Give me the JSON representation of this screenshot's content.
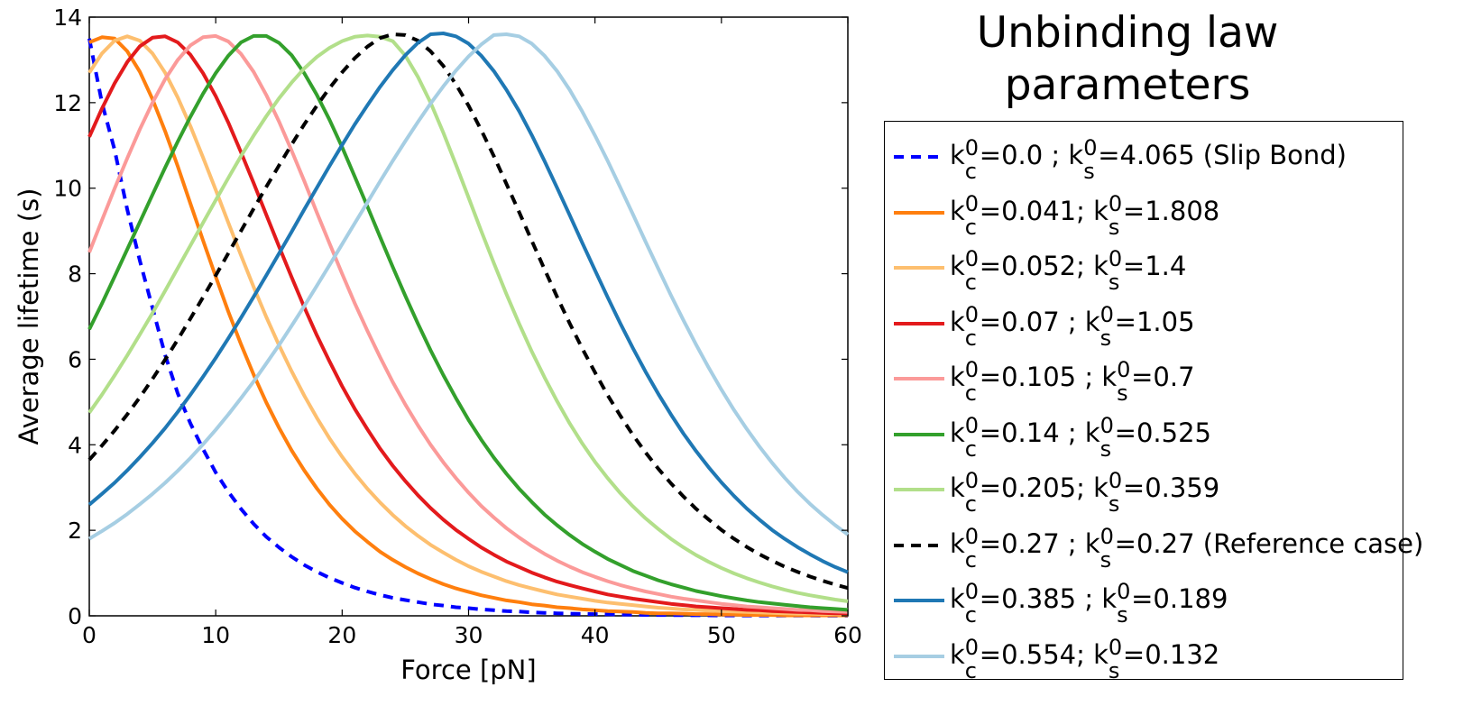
{
  "chart_data": {
    "type": "line",
    "xlabel": "Force [pN]",
    "ylabel": "Average lifetime (s)",
    "xlim": [
      0,
      60
    ],
    "ylim": [
      0,
      14
    ],
    "x_ticks": [
      "0",
      "10",
      "20",
      "30",
      "40",
      "50",
      "60"
    ],
    "y_ticks": [
      "0",
      "2",
      "4",
      "6",
      "8",
      "10",
      "12",
      "14"
    ],
    "grid": false,
    "legend": {
      "title": "Unbinding law parameters",
      "placement": "right"
    },
    "x": [
      0,
      1,
      2,
      3,
      4,
      5,
      6,
      7,
      8,
      9,
      10,
      11,
      12,
      13,
      14,
      15,
      16,
      17,
      18,
      19,
      20,
      21,
      22,
      23,
      24,
      25,
      26,
      27,
      28,
      29,
      30,
      31,
      32,
      33,
      34,
      35,
      36,
      37,
      38,
      39,
      40,
      41,
      42,
      43,
      44,
      45,
      46,
      47,
      48,
      49,
      50,
      51,
      52,
      53,
      54,
      55,
      56,
      57,
      58,
      59,
      60
    ],
    "series": [
      {
        "name": "k_c^0=0.0 ; k_s^0=4.065 (Slip Bond)",
        "label_parts": [
          "k",
          "c",
          "0",
          "=0.0    ; k",
          "s",
          "0",
          "=4.065 (Slip Bond)"
        ],
        "color": "#0000ff",
        "style": "dashed",
        "values": [
          13.5,
          12.0,
          10.9,
          9.5,
          8.3,
          7.2,
          6.1,
          5.2,
          4.5,
          3.9,
          3.35,
          2.9,
          2.5,
          2.15,
          1.85,
          1.6,
          1.38,
          1.19,
          1.03,
          0.89,
          0.77,
          0.66,
          0.57,
          0.49,
          0.42,
          0.37,
          0.32,
          0.27,
          0.24,
          0.2,
          0.18,
          0.15,
          0.13,
          0.11,
          0.1,
          0.08,
          0.07,
          0.06,
          0.05,
          0.045,
          0.04,
          0.035,
          0.03,
          0.026,
          0.022,
          0.019,
          0.017,
          0.014,
          0.012,
          0.011,
          0.009,
          0.008,
          0.007,
          0.006,
          0.005,
          0.0045,
          0.004,
          0.0035,
          0.003,
          0.0025,
          0.002
        ]
      },
      {
        "name": "k_c^0=0.041; k_s^0=1.808",
        "label_parts": [
          "k",
          "c",
          "0",
          "=0.041; k",
          "s",
          "0",
          "=1.808"
        ],
        "color": "#ff7f0e",
        "style": "solid",
        "values": [
          13.41,
          13.53,
          13.5,
          13.2,
          12.72,
          12.08,
          11.33,
          10.51,
          9.64,
          8.78,
          7.93,
          7.11,
          6.35,
          5.64,
          4.99,
          4.4,
          3.87,
          3.4,
          2.98,
          2.6,
          2.27,
          1.98,
          1.73,
          1.5,
          1.31,
          1.14,
          0.99,
          0.86,
          0.74,
          0.64,
          0.56,
          0.48,
          0.42,
          0.36,
          0.32,
          0.27,
          0.24,
          0.2,
          0.18,
          0.15,
          0.13,
          0.11,
          0.1,
          0.09,
          0.07,
          0.06,
          0.06,
          0.05,
          0.04,
          0.04,
          0.03,
          0.03,
          0.02,
          0.02,
          0.02,
          0.01,
          0.01,
          0.01,
          0.01,
          0.01,
          0.01
        ]
      },
      {
        "name": "k_c^0=0.052; k_s^0=1.4",
        "label_parts": [
          "k",
          "c",
          "0",
          "=0.052; k",
          "s",
          "0",
          "=1.4"
        ],
        "color": "#fdbf6f",
        "style": "solid",
        "values": [
          12.7,
          13.15,
          13.45,
          13.55,
          13.45,
          13.15,
          12.7,
          12.12,
          11.45,
          10.72,
          9.96,
          9.19,
          8.43,
          7.69,
          6.99,
          6.33,
          5.72,
          5.15,
          4.63,
          4.15,
          3.72,
          3.33,
          2.97,
          2.65,
          2.36,
          2.1,
          1.87,
          1.66,
          1.48,
          1.31,
          1.16,
          1.03,
          0.92,
          0.81,
          0.72,
          0.64,
          0.57,
          0.5,
          0.45,
          0.4,
          0.35,
          0.31,
          0.28,
          0.25,
          0.22,
          0.19,
          0.17,
          0.15,
          0.14,
          0.12,
          0.11,
          0.1,
          0.09,
          0.08,
          0.07,
          0.06,
          0.05,
          0.05,
          0.04,
          0.04,
          0.03
        ]
      },
      {
        "name": "k_c^0=0.07 ; k_s^0=1.05",
        "label_parts": [
          "k",
          "c",
          "0",
          "=0.07 ; k",
          "s",
          "0",
          "=1.05"
        ],
        "color": "#e31a1c",
        "style": "solid",
        "values": [
          11.2,
          11.86,
          12.45,
          12.95,
          13.32,
          13.52,
          13.55,
          13.41,
          13.12,
          12.69,
          12.15,
          11.53,
          10.84,
          10.12,
          9.38,
          8.64,
          7.92,
          7.22,
          6.56,
          5.95,
          5.37,
          4.84,
          4.36,
          3.91,
          3.51,
          3.15,
          2.82,
          2.52,
          2.25,
          2.01,
          1.8,
          1.6,
          1.43,
          1.27,
          1.14,
          1.01,
          0.9,
          0.8,
          0.72,
          0.64,
          0.57,
          0.5,
          0.45,
          0.4,
          0.36,
          0.32,
          0.28,
          0.25,
          0.22,
          0.2,
          0.18,
          0.16,
          0.14,
          0.13,
          0.11,
          0.1,
          0.09,
          0.08,
          0.07,
          0.06,
          0.06
        ]
      },
      {
        "name": "k_c^0=0.105 ; k_s^0=0.7",
        "label_parts": [
          "k",
          "c",
          "0",
          "=0.105 ; k",
          "s",
          "0",
          "=0.7"
        ],
        "color": "#fb9a99",
        "style": "solid",
        "values": [
          8.5,
          9.25,
          9.99,
          10.7,
          11.38,
          12.0,
          12.55,
          13.0,
          13.34,
          13.53,
          13.56,
          13.43,
          13.14,
          12.72,
          12.18,
          11.56,
          10.88,
          10.17,
          9.43,
          8.71,
          8.0,
          7.31,
          6.66,
          6.05,
          5.47,
          4.94,
          4.45,
          4.0,
          3.59,
          3.22,
          2.88,
          2.57,
          2.3,
          2.05,
          1.83,
          1.63,
          1.45,
          1.29,
          1.15,
          1.02,
          0.91,
          0.81,
          0.72,
          0.64,
          0.57,
          0.51,
          0.45,
          0.4,
          0.36,
          0.32,
          0.28,
          0.25,
          0.22,
          0.2,
          0.18,
          0.16,
          0.14,
          0.13,
          0.11,
          0.1,
          0.09
        ]
      },
      {
        "name": "k_c^0=0.14 ; k_s^0=0.525",
        "label_parts": [
          "k",
          "c",
          "0",
          "=0.14 ; k",
          "s",
          "0",
          "=0.525"
        ],
        "color": "#33a02c",
        "style": "solid",
        "values": [
          6.7,
          7.3,
          7.93,
          8.57,
          9.21,
          9.85,
          10.48,
          11.09,
          11.67,
          12.21,
          12.69,
          13.1,
          13.41,
          13.56,
          13.56,
          13.4,
          13.11,
          12.69,
          12.18,
          11.6,
          10.96,
          10.27,
          9.57,
          8.86,
          8.16,
          7.48,
          6.83,
          6.21,
          5.63,
          5.09,
          4.58,
          4.12,
          3.7,
          3.32,
          2.97,
          2.66,
          2.37,
          2.12,
          1.89,
          1.68,
          1.5,
          1.33,
          1.19,
          1.05,
          0.94,
          0.83,
          0.74,
          0.66,
          0.58,
          0.52,
          0.46,
          0.41,
          0.36,
          0.32,
          0.29,
          0.26,
          0.23,
          0.2,
          0.18,
          0.16,
          0.14
        ]
      },
      {
        "name": "k_c^0=0.205; k_s^0=0.359",
        "label_parts": [
          "k",
          "c",
          "0",
          "=0.205; k",
          "s",
          "0",
          "=0.359"
        ],
        "color": "#b2df8a",
        "style": "solid",
        "values": [
          4.75,
          5.17,
          5.62,
          6.09,
          6.58,
          7.08,
          7.6,
          8.13,
          8.66,
          9.19,
          9.72,
          10.24,
          10.75,
          11.23,
          11.68,
          12.1,
          12.47,
          12.8,
          13.07,
          13.28,
          13.44,
          13.54,
          13.57,
          13.54,
          13.44,
          13.1,
          12.6,
          12.0,
          11.3,
          10.55,
          9.78,
          9.0,
          8.25,
          7.52,
          6.83,
          6.18,
          5.58,
          5.02,
          4.5,
          4.03,
          3.6,
          3.22,
          2.87,
          2.56,
          2.28,
          2.03,
          1.8,
          1.6,
          1.42,
          1.26,
          1.12,
          0.99,
          0.88,
          0.78,
          0.69,
          0.61,
          0.54,
          0.48,
          0.43,
          0.38,
          0.34
        ]
      },
      {
        "name": "k_c^0=0.27 ; k_s^0=0.27 (Reference case)",
        "label_parts": [
          "k",
          "c",
          "0",
          "=0.27 ; k",
          "s",
          "0",
          "=0.27 (Reference case)"
        ],
        "color": "#000000",
        "style": "dashed",
        "values": [
          3.65,
          3.98,
          4.33,
          4.71,
          5.11,
          5.54,
          5.99,
          6.46,
          6.95,
          7.45,
          7.96,
          8.48,
          9.0,
          9.52,
          10.03,
          10.53,
          11.02,
          11.49,
          11.93,
          12.34,
          12.71,
          13.04,
          13.31,
          13.51,
          13.6,
          13.58,
          13.45,
          13.2,
          12.86,
          12.43,
          11.93,
          11.36,
          10.75,
          10.1,
          9.44,
          8.77,
          8.11,
          7.46,
          6.84,
          6.25,
          5.69,
          5.16,
          4.68,
          4.23,
          3.82,
          3.44,
          3.1,
          2.79,
          2.5,
          2.25,
          2.01,
          1.8,
          1.61,
          1.44,
          1.29,
          1.15,
          1.03,
          0.92,
          0.82,
          0.73,
          0.65
        ]
      },
      {
        "name": "k_c^0=0.385 ; k_s^0=0.189",
        "label_parts": [
          "k",
          "c",
          "0",
          "=0.385 ; k",
          "s",
          "0",
          "=0.189"
        ],
        "color": "#1f78b4",
        "style": "solid",
        "values": [
          2.6,
          2.85,
          3.11,
          3.4,
          3.71,
          4.04,
          4.39,
          4.77,
          5.17,
          5.59,
          6.03,
          6.49,
          6.97,
          7.46,
          7.96,
          8.47,
          8.98,
          9.5,
          10.01,
          10.52,
          11.01,
          11.49,
          11.94,
          12.37,
          12.76,
          13.11,
          13.4,
          13.6,
          13.62,
          13.55,
          13.38,
          13.1,
          12.74,
          12.3,
          11.8,
          11.24,
          10.64,
          10.01,
          9.37,
          8.72,
          8.08,
          7.45,
          6.84,
          6.26,
          5.71,
          5.19,
          4.71,
          4.26,
          3.85,
          3.47,
          3.12,
          2.8,
          2.51,
          2.25,
          2.01,
          1.8,
          1.61,
          1.44,
          1.28,
          1.14,
          1.02
        ]
      },
      {
        "name": "k_c^0=0.554; k_s^0=0.132",
        "label_parts": [
          "k",
          "c",
          "0",
          "=0.554; k",
          "s",
          "0",
          "=0.132"
        ],
        "color": "#a6cee3",
        "style": "solid",
        "values": [
          1.8,
          1.98,
          2.17,
          2.38,
          2.61,
          2.85,
          3.11,
          3.39,
          3.69,
          4.01,
          4.35,
          4.71,
          5.09,
          5.48,
          5.9,
          6.33,
          6.78,
          7.24,
          7.72,
          8.2,
          8.69,
          9.18,
          9.67,
          10.16,
          10.64,
          11.1,
          11.55,
          11.98,
          12.38,
          12.75,
          13.08,
          13.36,
          13.58,
          13.6,
          13.55,
          13.38,
          13.1,
          12.74,
          12.3,
          11.79,
          11.23,
          10.64,
          10.02,
          9.39,
          8.75,
          8.12,
          7.5,
          6.91,
          6.34,
          5.8,
          5.29,
          4.81,
          4.37,
          3.96,
          3.58,
          3.23,
          2.91,
          2.62,
          2.36,
          2.12,
          1.9
        ]
      }
    ]
  }
}
